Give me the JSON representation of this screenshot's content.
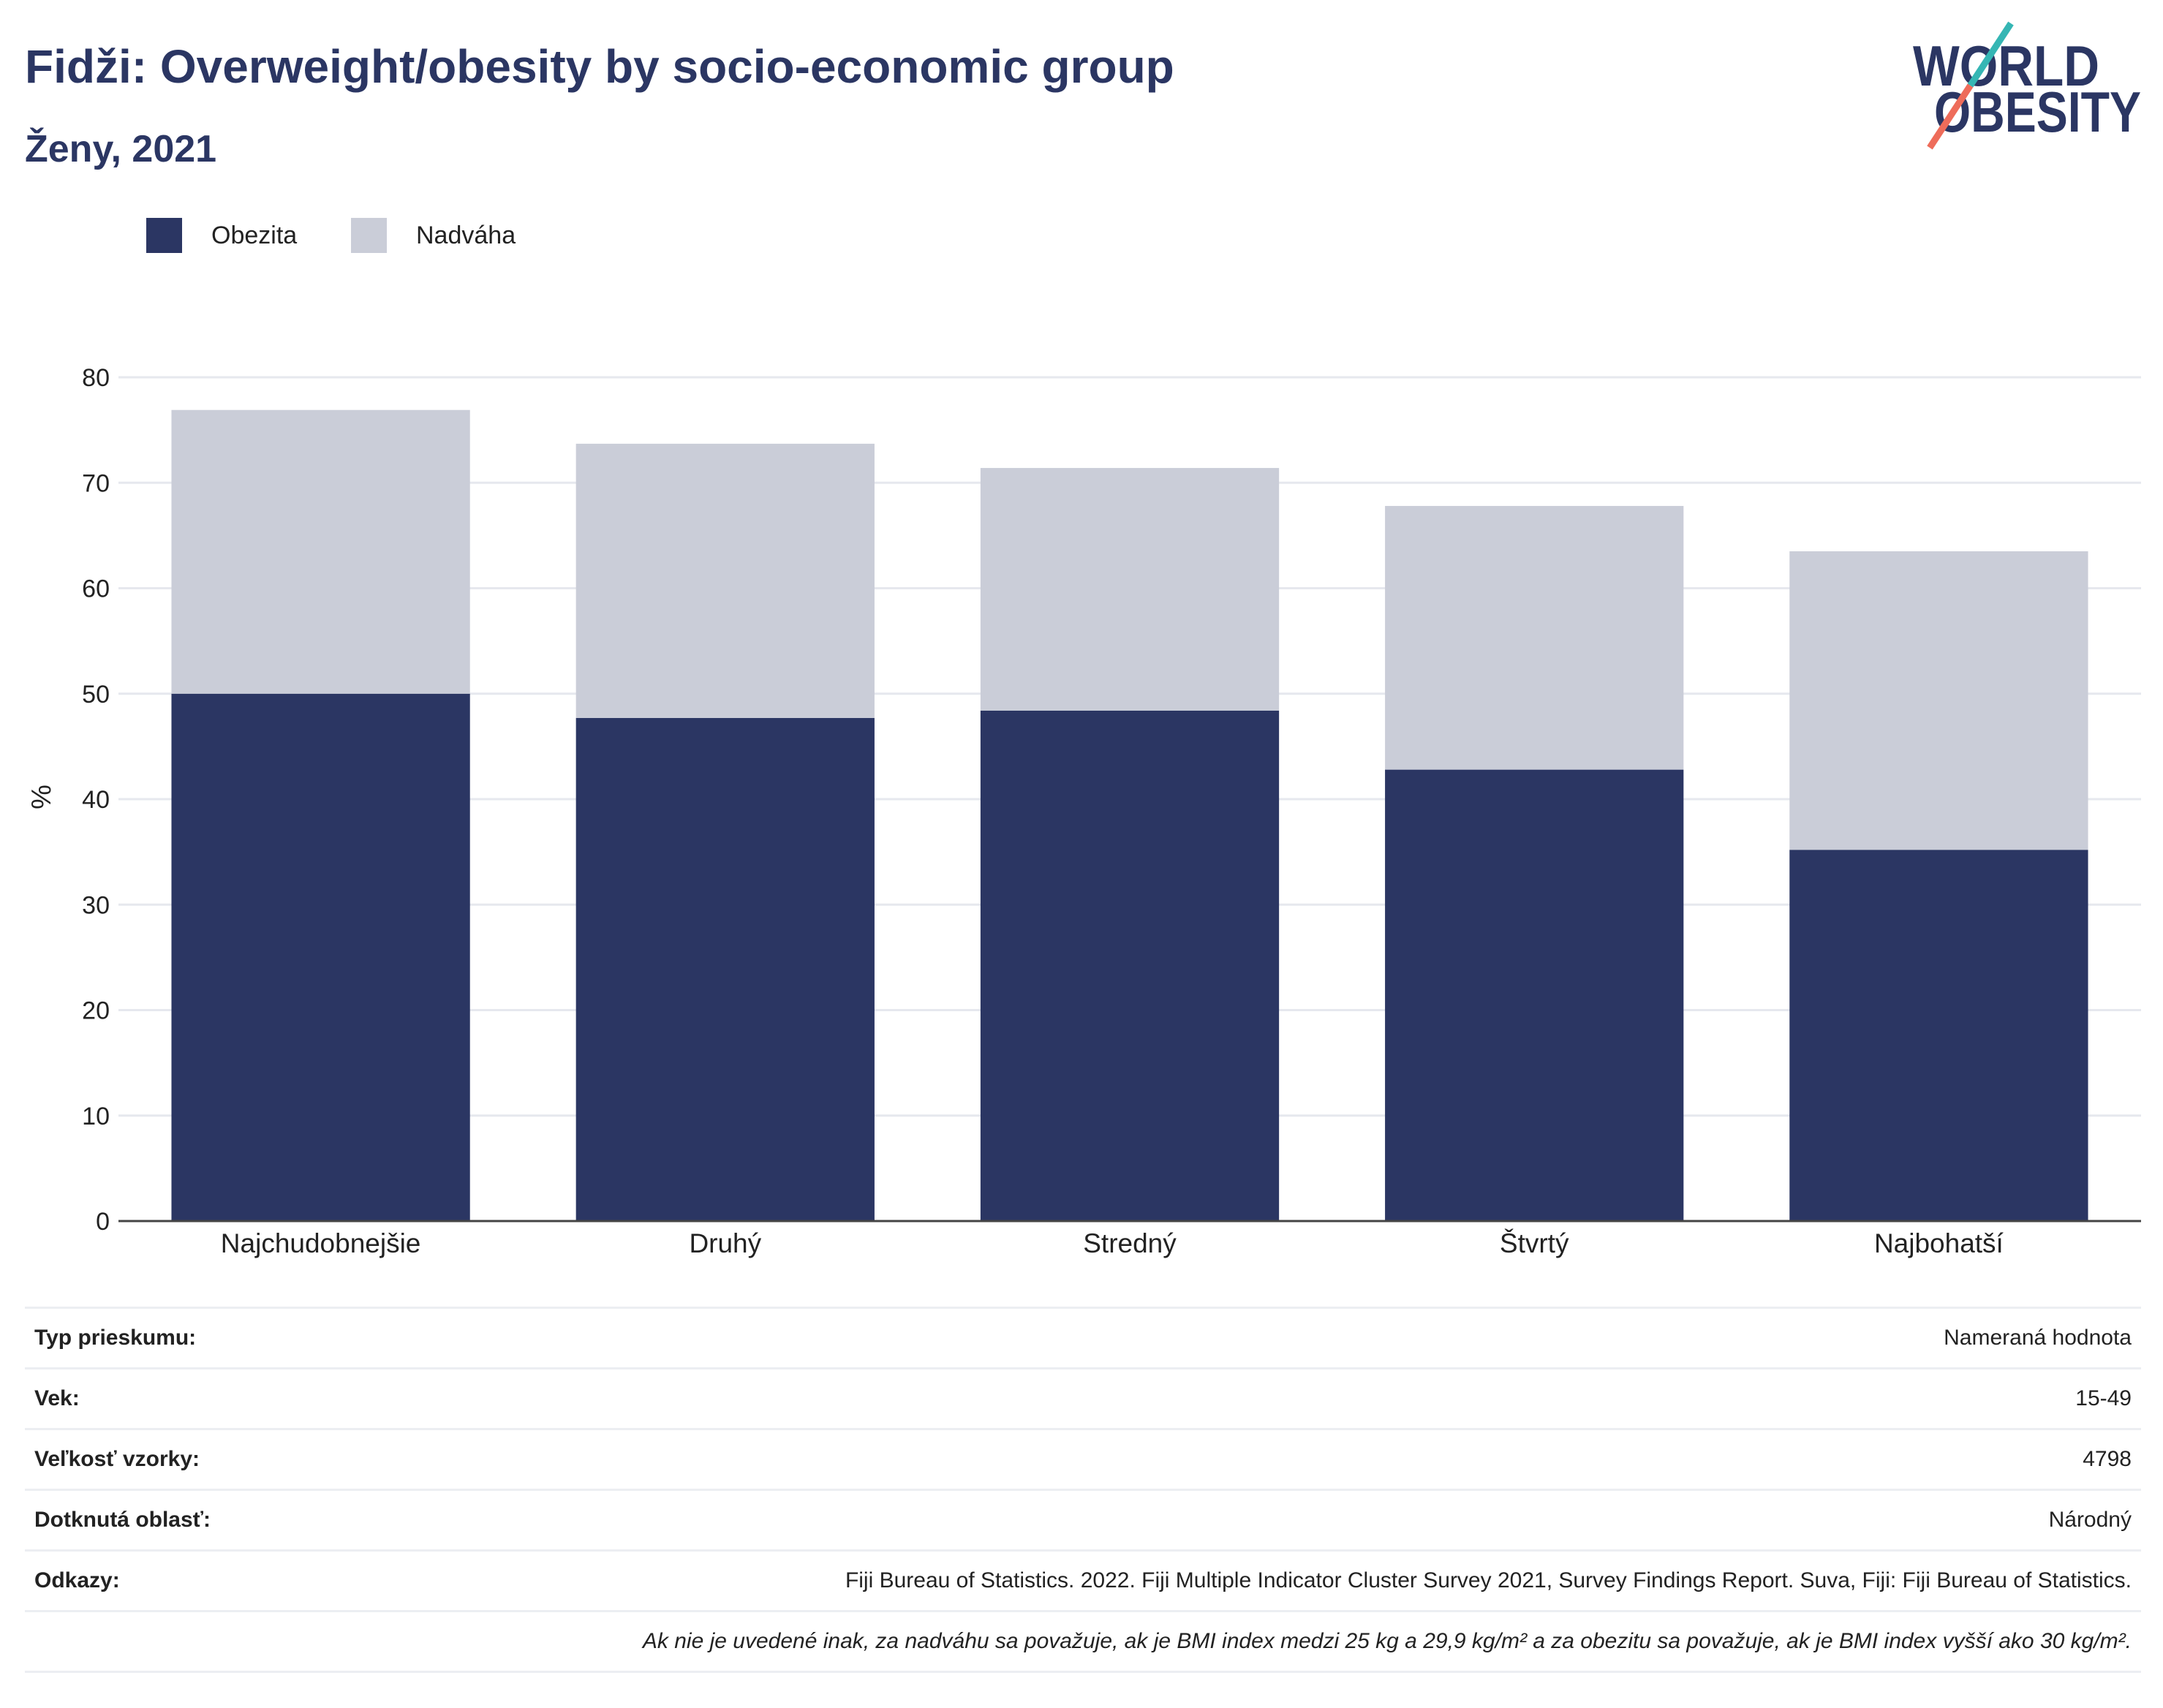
{
  "logo": {
    "line1": "WORLD",
    "line2": "OBESITY",
    "teal": "#35b6b4",
    "salmon": "#ee6c5a"
  },
  "chart_data": {
    "type": "bar",
    "stacked": true,
    "title": "Fidži: Overweight/obesity by socio-economic group",
    "subtitle": "Ženy, 2021",
    "categories": [
      "Najchudobnejšie",
      "Druhý",
      "Stredný",
      "Štvrtý",
      "Najbohatší"
    ],
    "series": [
      {
        "name": "Obezita",
        "color": "#2b3663",
        "values": [
          50.0,
          47.7,
          48.4,
          42.8,
          35.2
        ]
      },
      {
        "name": "Nadváha",
        "color": "#cacdd8",
        "values": [
          26.9,
          26.0,
          23.0,
          25.0,
          28.3
        ]
      }
    ],
    "xlabel": "",
    "ylabel": "%",
    "ylim": [
      0,
      80
    ],
    "yticks": [
      0,
      10,
      20,
      30,
      40,
      50,
      60,
      70,
      80
    ],
    "grid": true,
    "legend_position": "top-left"
  },
  "details": {
    "rows": [
      {
        "label": "Typ prieskumu:",
        "value": "Nameraná hodnota"
      },
      {
        "label": "Vek:",
        "value": "15-49"
      },
      {
        "label": "Veľkosť vzorky:",
        "value": "4798"
      },
      {
        "label": "Dotknutá oblasť:",
        "value": "Národný"
      },
      {
        "label": "Odkazy:",
        "value": "Fiji Bureau of Statistics. 2022. Fiji Multiple Indicator Cluster Survey 2021, Survey Findings Report. Suva, Fiji: Fiji Bureau of Statistics."
      }
    ],
    "footnote": "Ak nie je uvedené inak, za nadváhu sa považuje, ak je BMI index medzi 25 kg a 29,9 kg/m² a za obezitu sa považuje, ak je BMI index vyšší ako 30 kg/m²."
  }
}
